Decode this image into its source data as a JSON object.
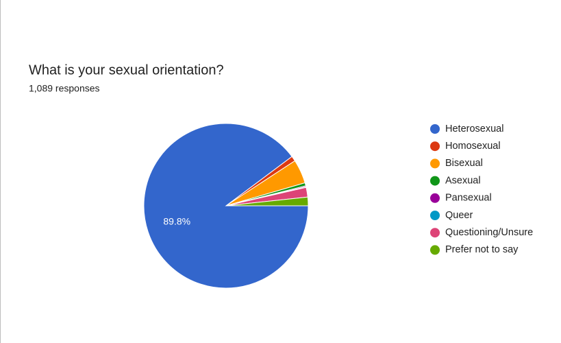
{
  "chart_data": {
    "type": "pie",
    "title": "What is your sexual orientation?",
    "subtitle": "1,089 responses",
    "categories": [
      "Heterosexual",
      "Homosexual",
      "Bisexual",
      "Asexual",
      "Pansexual",
      "Queer",
      "Questioning/Unsure",
      "Prefer not to say"
    ],
    "values": [
      89.8,
      1.0,
      4.7,
      0.6,
      0.2,
      0.1,
      1.9,
      1.7
    ],
    "value_labels": [
      "89.8%",
      null,
      null,
      null,
      null,
      null,
      null,
      null
    ],
    "colors": [
      "#3366cc",
      "#dc3912",
      "#ff9900",
      "#109618",
      "#990099",
      "#0099c6",
      "#dd4477",
      "#66aa00"
    ],
    "legend": "right"
  }
}
